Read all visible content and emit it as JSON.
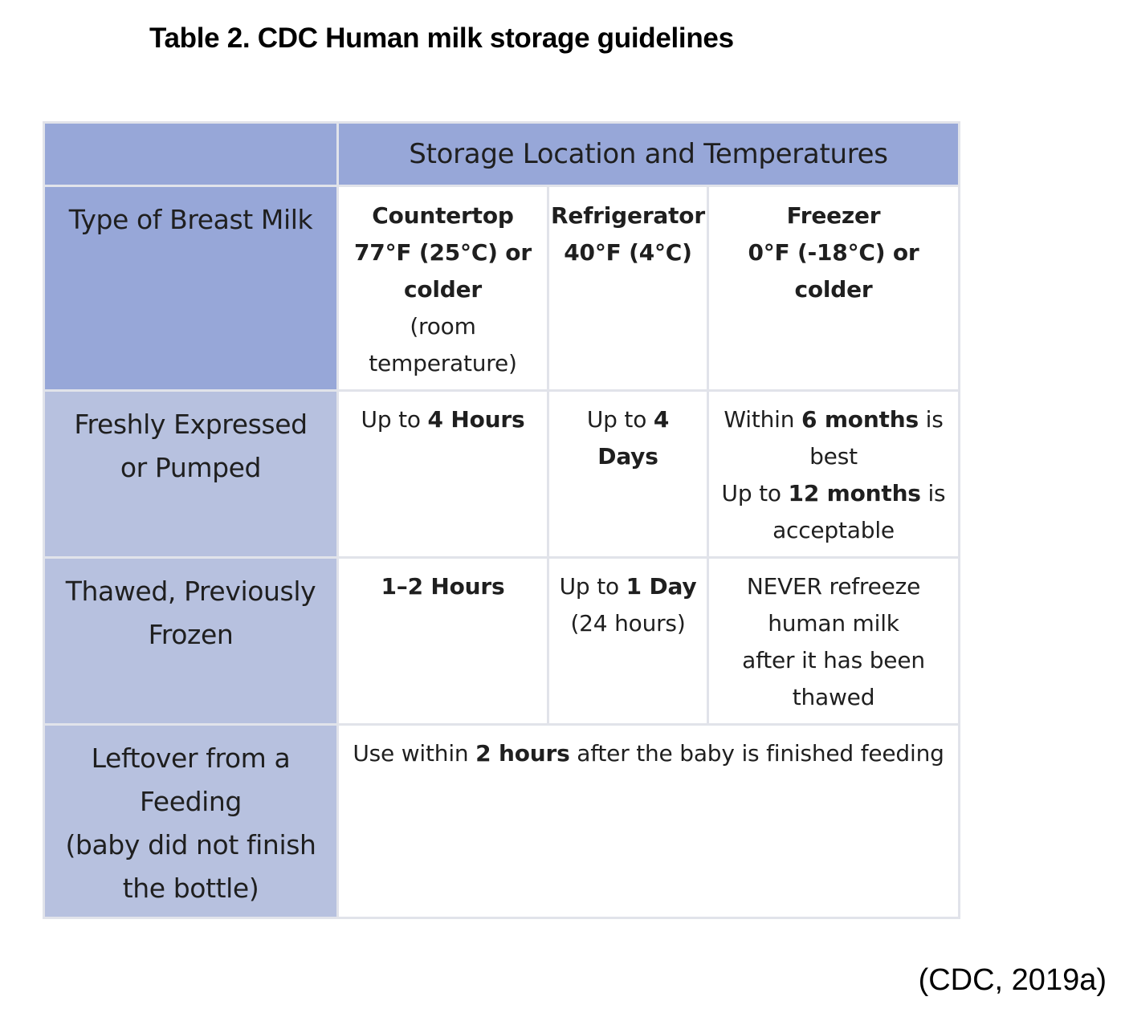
{
  "title": "Table 2. CDC Human milk storage guidelines",
  "table": {
    "span_header": "Storage Location and Temperatures",
    "row_header_label": "Type of Breast Milk",
    "columns": {
      "countertop": {
        "line1": "Countertop",
        "line2": "77°F (25°C) or",
        "line3": "colder",
        "sub1": "(room",
        "sub2": "temperature)"
      },
      "refrigerator": {
        "line1": "Refrigerator",
        "line2": "40°F (4°C)"
      },
      "freezer": {
        "line1": "Freezer",
        "line2": "0°F (-18°C) or colder"
      }
    },
    "rows": {
      "fresh": {
        "label1": "Freshly Expressed",
        "label2": "or Pumped",
        "countertop": {
          "pre": "Up to ",
          "bold": "4 Hours"
        },
        "refrigerator": {
          "pre": "Up to ",
          "bold1": "4",
          "bold2": "Days"
        },
        "freezer": {
          "a_pre": "Within ",
          "a_bold": "6 months",
          "a_post": " is",
          "a_line2": "best",
          "b_pre": "Up to ",
          "b_bold": "12 months",
          "b_post": " is",
          "b_line2": "acceptable"
        }
      },
      "thawed": {
        "label1": "Thawed, Previously",
        "label2": "Frozen",
        "countertop": {
          "bold": "1–2 Hours"
        },
        "refrigerator": {
          "pre": "Up to ",
          "bold": "1 Day",
          "line2": "(24 hours)"
        },
        "freezer": {
          "line1": "NEVER refreeze",
          "line2": "human milk",
          "line3": "after it has been",
          "line4": "thawed"
        }
      },
      "leftover": {
        "label1": "Leftover from a",
        "label2": "Feeding",
        "label3": "(baby did not finish",
        "label4": "the bottle)",
        "merged": {
          "pre": "Use within ",
          "bold": "2 hours",
          "post": " after the baby is finished feeding"
        }
      }
    }
  },
  "citation": "(CDC, 2019a)",
  "colors": {
    "header_dark": "#97a7d8",
    "header_light": "#b7c1df",
    "border": "#e1e3ea"
  }
}
